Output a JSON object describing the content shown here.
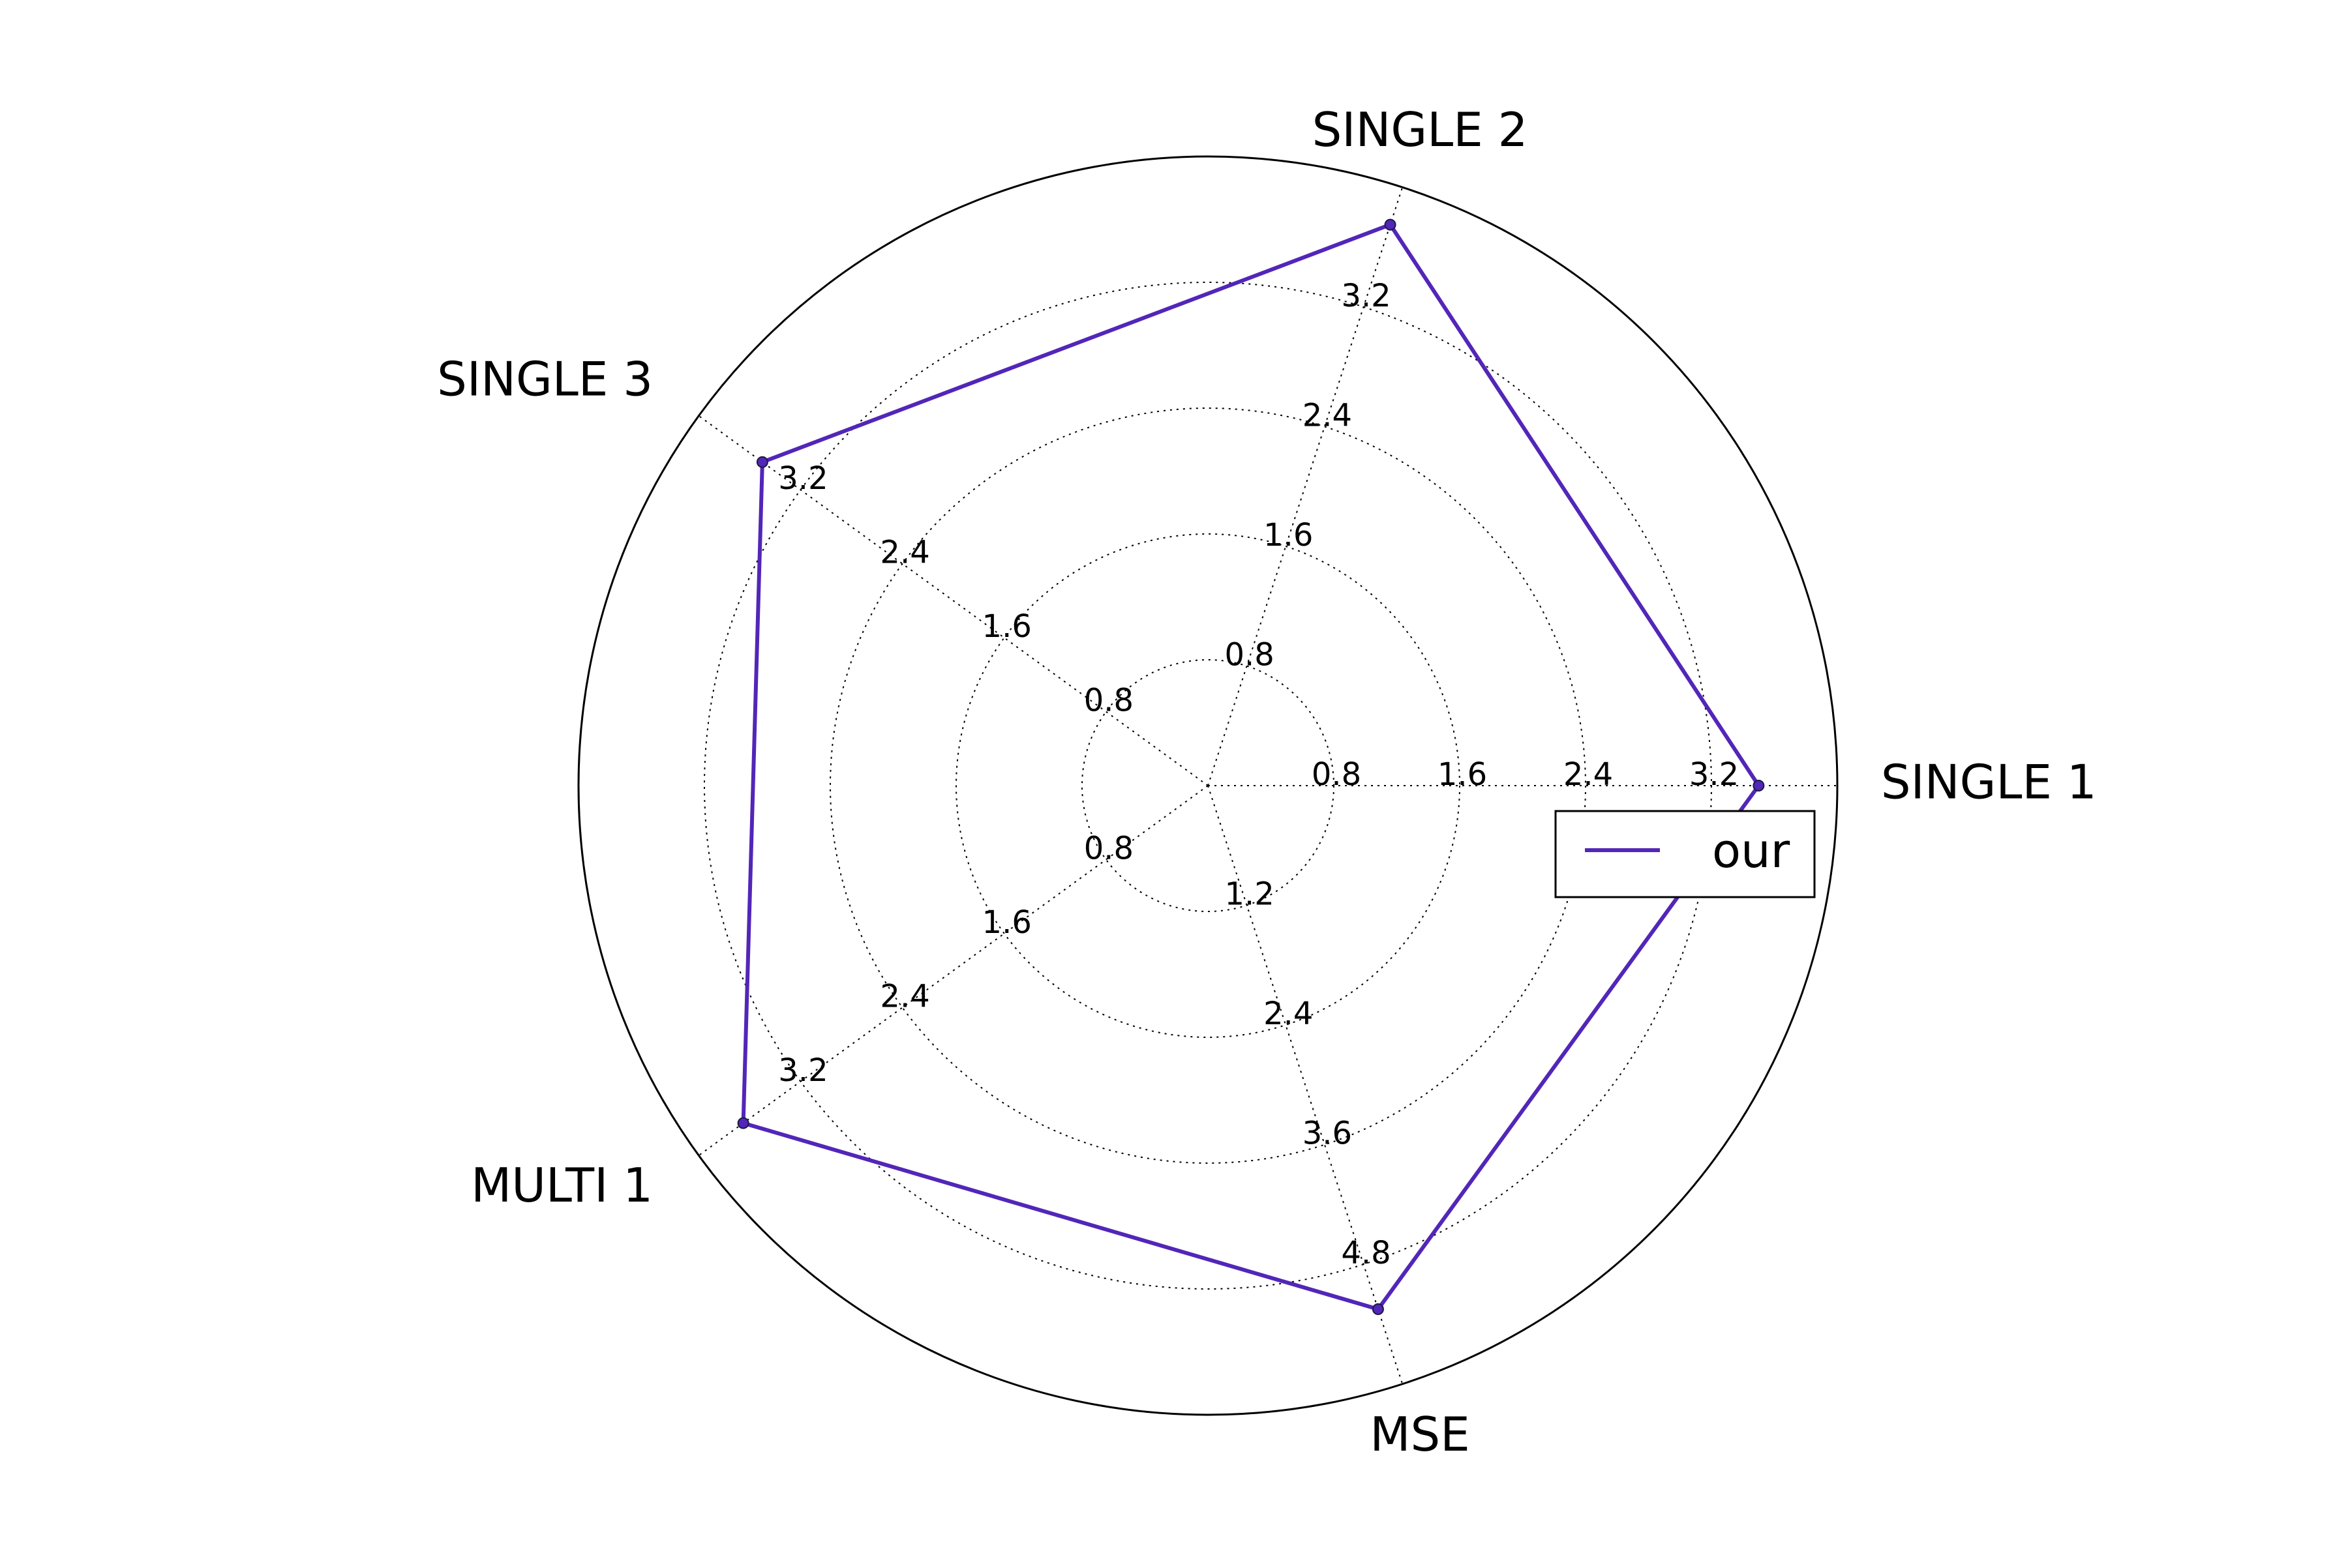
{
  "chart_data": {
    "type": "radar",
    "title": "",
    "axes": [
      {
        "label": "SINGLE 1",
        "ticks": [
          "0.8",
          "1.6",
          "2.4",
          "3.2"
        ],
        "max": 4.0
      },
      {
        "label": "SINGLE 2",
        "ticks": [
          "0.8",
          "1.6",
          "2.4",
          "3.2"
        ],
        "max": 4.0
      },
      {
        "label": "SINGLE 3",
        "ticks": [
          "0.8",
          "1.6",
          "2.4",
          "3.2"
        ],
        "max": 4.0
      },
      {
        "label": "MULTI 1",
        "ticks": [
          "0.8",
          "1.6",
          "2.4",
          "3.2"
        ],
        "max": 4.0
      },
      {
        "label": "MSE",
        "ticks": [
          "1.2",
          "2.4",
          "3.6",
          "4.8"
        ],
        "max": 6.0
      }
    ],
    "grid": true,
    "series": [
      {
        "name": "our",
        "color": "#5226b8",
        "values": [
          3.5,
          3.75,
          3.5,
          3.65,
          5.25
        ]
      }
    ],
    "legend": {
      "placement": "right",
      "entries": [
        "our"
      ]
    }
  }
}
